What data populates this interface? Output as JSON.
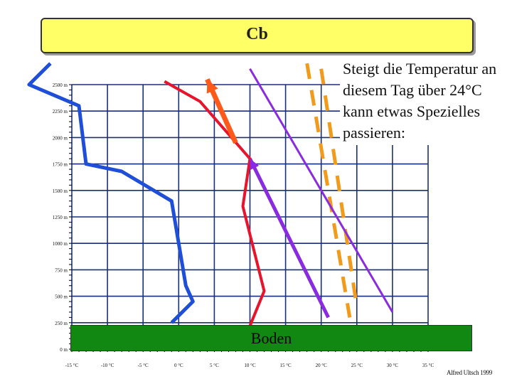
{
  "header": {
    "title": "Cb"
  },
  "note": {
    "text": "Steigt die Temperatur an diesem Tag über 24°C kann etwas Spezielles passieren:"
  },
  "ground": {
    "label": "Boden"
  },
  "credit": {
    "text": "Alfred Ultsch 1999"
  },
  "axes": {
    "y_ticks": [
      "2500 m",
      "2250 m",
      "2000 m",
      "1750 m",
      "1500 m",
      "1250 m",
      "1000 m",
      "750 m",
      "500 m",
      "250 m",
      "0 m"
    ],
    "x_ticks": [
      "-15 °C",
      "-10 °C",
      "-5 °C",
      "0 °C",
      "5 °C",
      "10 °C",
      "15 °C",
      "20 °C",
      "25 °C",
      "30 °C",
      "35 °C"
    ]
  },
  "colors": {
    "grid": "#1a2f7a",
    "dewpoint": "#1f4fd8",
    "temperature": "#e8142c",
    "dry_adiabat": "#8a2be2",
    "moist_adiabat": "#f29a1a",
    "parcel_path": "#ff5a1a",
    "ground": "#118811",
    "title_box": "#ffff66"
  },
  "lines": {
    "dewpoint": [
      [
        -18,
        2700
      ],
      [
        -21,
        2500
      ],
      [
        -14,
        2300
      ],
      [
        -13,
        1750
      ],
      [
        -8,
        1680
      ],
      [
        -1,
        1400
      ],
      [
        1,
        600
      ],
      [
        2,
        450
      ],
      [
        -1,
        250
      ]
    ],
    "temperature": [
      [
        -2,
        2530
      ],
      [
        3,
        2340
      ],
      [
        10,
        1800
      ],
      [
        9,
        1350
      ],
      [
        12,
        550
      ],
      [
        10,
        220
      ]
    ],
    "dry_adiabat_upper": [
      [
        10,
        2650
      ],
      [
        30,
        350
      ]
    ],
    "dry_adiabat_lower": [
      [
        10,
        1800
      ],
      [
        21,
        300
      ]
    ],
    "moist_adiabat_left": [
      [
        18,
        2700
      ],
      [
        24,
        300
      ]
    ],
    "moist_adiabat_right": [
      [
        20,
        2650
      ],
      [
        25,
        400
      ]
    ],
    "parcel_path": [
      [
        8,
        1950
      ],
      [
        4,
        2550
      ]
    ]
  }
}
